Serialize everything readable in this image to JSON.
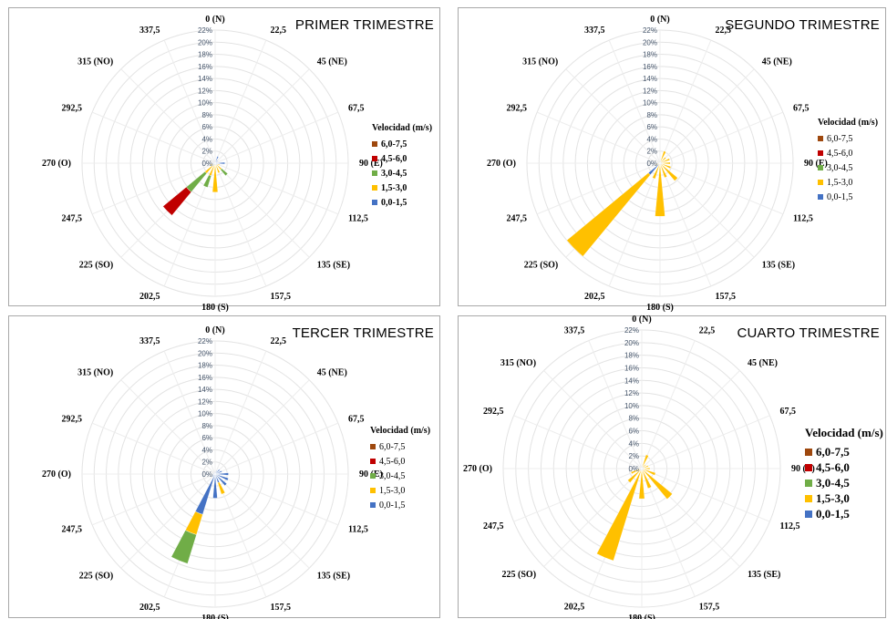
{
  "chart_data": [
    {
      "type": "windrose",
      "title": "PRIMER TRIMESTRE",
      "legend_title": "Velocidad  (m/s)",
      "radial_ticks": [
        "0%",
        "2%",
        "4%",
        "6%",
        "8%",
        "10%",
        "12%",
        "14%",
        "16%",
        "18%",
        "20%",
        "22%"
      ],
      "rmax": 22,
      "directions": [
        "0 (N)",
        "22,5",
        "45 (NE)",
        "67,5",
        "90 (E)",
        "112,5",
        "135 (SE)",
        "157,5",
        "180 (S)",
        "202,5",
        "225 (SO)",
        "247,5",
        "270 (O)",
        "292,5",
        "315 (NO)",
        "337,5"
      ],
      "series": [
        {
          "name": "0,0-1,5",
          "color": "#4472c4",
          "values": [
            0.2,
            1.2,
            0.6,
            0.4,
            1.6,
            0.4,
            0.4,
            0.3,
            0.3,
            0.2,
            0.6,
            0.4,
            0.2,
            0.1,
            0.1,
            0.1
          ]
        },
        {
          "name": "1,5-3,0",
          "color": "#ffc000",
          "values": [
            0,
            0,
            0,
            0,
            0,
            0.4,
            1,
            1.4,
            4.5,
            2,
            1.6,
            0.4,
            0,
            0,
            0,
            0
          ]
        },
        {
          "name": "3,0-4,5",
          "color": "#70ad47",
          "values": [
            0,
            0,
            0,
            0,
            0,
            0,
            1.3,
            0,
            0,
            2,
            4,
            0,
            0,
            0,
            0,
            0
          ]
        },
        {
          "name": "4,5-6,0",
          "color": "#c00000",
          "values": [
            0,
            0,
            0,
            0,
            0,
            0,
            0,
            0,
            0,
            0,
            5,
            0,
            0,
            0,
            0,
            0
          ]
        },
        {
          "name": "6,0-7,5",
          "color": "#9e480e",
          "values": [
            0,
            0,
            0,
            0,
            0,
            0,
            0,
            0,
            0,
            0,
            0,
            0,
            0,
            0,
            0,
            0
          ]
        }
      ]
    },
    {
      "type": "windrose",
      "title": "SEGUNDO TRIMESTRE",
      "legend_title": "Velocidad  (m/s)",
      "radial_ticks": [
        "0%",
        "2%",
        "4%",
        "6%",
        "8%",
        "10%",
        "12%",
        "14%",
        "16%",
        "18%",
        "20%",
        "22%"
      ],
      "rmax": 22,
      "directions": [
        "0 (N)",
        "22,5",
        "45 (NE)",
        "67,5",
        "90 (E)",
        "112,5",
        "135 (SE)",
        "157,5",
        "180 (S)",
        "202,5",
        "225 (SO)",
        "247,5",
        "270 (O)",
        "292,5",
        "315 (NO)",
        "337,5"
      ],
      "series": [
        {
          "name": "0,0-1,5",
          "color": "#4472c4",
          "values": [
            0.1,
            0.3,
            0.3,
            0.2,
            0.3,
            0.3,
            0.3,
            0.3,
            0.3,
            0.2,
            2.5,
            0.2,
            0.1,
            0.1,
            0.1,
            0.1
          ]
        },
        {
          "name": "1,5-3,0",
          "color": "#ffc000",
          "values": [
            0,
            1.8,
            1,
            1.5,
            1.4,
            1.6,
            3.5,
            2.2,
            8.5,
            2.5,
            17.5,
            0.5,
            0.2,
            0,
            0,
            0
          ]
        },
        {
          "name": "3,0-4,5",
          "color": "#70ad47",
          "values": [
            0,
            0,
            0,
            0,
            0,
            0,
            0,
            0,
            0,
            0,
            0,
            0,
            0,
            0,
            0,
            0
          ]
        },
        {
          "name": "4,5-6,0",
          "color": "#c00000",
          "values": [
            0,
            0,
            0,
            0,
            0,
            0,
            0,
            0,
            0,
            0,
            0,
            0,
            0,
            0,
            0,
            0
          ]
        },
        {
          "name": "6,0-7,5",
          "color": "#9e480e",
          "values": [
            0,
            0,
            0,
            0,
            0,
            0,
            0,
            0,
            0,
            0,
            0,
            0,
            0,
            0,
            0,
            0
          ]
        }
      ]
    },
    {
      "type": "windrose",
      "title": "TERCER TRIMESTRE",
      "legend_title": "Velocidad  (m/s)",
      "radial_ticks": [
        "0%",
        "2%",
        "4%",
        "6%",
        "8%",
        "10%",
        "12%",
        "14%",
        "16%",
        "18%",
        "20%",
        "22%"
      ],
      "rmax": 22,
      "directions": [
        "0 (N)",
        "22,5",
        "45 (NE)",
        "67,5",
        "90 (E)",
        "112,5",
        "135 (SE)",
        "157,5",
        "180 (S)",
        "202,5",
        "225 (SO)",
        "247,5",
        "270 (O)",
        "292,5",
        "315 (NO)",
        "337,5"
      ],
      "series": [
        {
          "name": "0,0-1,5",
          "color": "#4472c4",
          "values": [
            0.2,
            0.6,
            1,
            1.2,
            2.2,
            2.3,
            2.5,
            1.5,
            4,
            7,
            0.6,
            0.5,
            0.2,
            0.2,
            0.3,
            0.3
          ]
        },
        {
          "name": "1,5-3,0",
          "color": "#ffc000",
          "values": [
            0,
            0,
            0,
            0,
            0,
            0,
            0,
            2,
            0,
            3.5,
            0,
            0,
            0,
            0,
            0,
            0
          ]
        },
        {
          "name": "3,0-4,5",
          "color": "#70ad47",
          "values": [
            0,
            0,
            0,
            0,
            0,
            0,
            0,
            0,
            0,
            5,
            0,
            0,
            0,
            0,
            0,
            0
          ]
        },
        {
          "name": "4,5-6,0",
          "color": "#c00000",
          "values": [
            0,
            0,
            0,
            0,
            0,
            0,
            0,
            0,
            0,
            0,
            0,
            0,
            0,
            0,
            0,
            0
          ]
        },
        {
          "name": "6,0-7,5",
          "color": "#9e480e",
          "values": [
            0,
            0,
            0,
            0,
            0,
            0,
            0,
            0,
            0,
            0,
            0,
            0,
            0,
            0,
            0,
            0
          ]
        }
      ]
    },
    {
      "type": "windrose",
      "title": "CUARTO TRIMESTRE",
      "legend_title": "Velocidad  (m/s)",
      "radial_ticks": [
        "0%",
        "2%",
        "4%",
        "6%",
        "8%",
        "10%",
        "12%",
        "14%",
        "16%",
        "18%",
        "20%",
        "22%"
      ],
      "rmax": 22,
      "directions": [
        "0 (N)",
        "22,5",
        "45 (NE)",
        "67,5",
        "90 (E)",
        "112,5",
        "135 (SE)",
        "157,5",
        "180 (S)",
        "202,5",
        "225 (SO)",
        "247,5",
        "270 (O)",
        "292,5",
        "315 (NO)",
        "337,5"
      ],
      "series": [
        {
          "name": "0,0-1,5",
          "color": "#4472c4",
          "values": [
            0.2,
            0.3,
            0.3,
            0.3,
            0.3,
            0.3,
            0.3,
            0.3,
            0.3,
            0.3,
            0.4,
            0.3,
            0.2,
            0.2,
            0.2,
            0.2
          ]
        },
        {
          "name": "1,5-3,0",
          "color": "#ffc000",
          "values": [
            0,
            2,
            0.5,
            0.8,
            1,
            2,
            6,
            3,
            4.5,
            15,
            2.5,
            1.5,
            0.3,
            0,
            0,
            0
          ]
        },
        {
          "name": "3,0-4,5",
          "color": "#70ad47",
          "values": [
            0,
            0,
            0,
            0,
            0,
            0,
            0,
            0,
            0,
            0,
            0,
            0,
            0,
            0,
            0,
            0
          ]
        },
        {
          "name": "4,5-6,0",
          "color": "#c00000",
          "values": [
            0,
            0,
            0,
            0,
            0,
            0,
            0,
            0,
            0,
            0,
            0,
            0,
            0,
            0,
            0,
            0
          ]
        },
        {
          "name": "6,0-7,5",
          "color": "#9e480e",
          "values": [
            0,
            0,
            0,
            0,
            0,
            0,
            0,
            0,
            0,
            0,
            0,
            0,
            0,
            0,
            0,
            0
          ]
        }
      ]
    }
  ]
}
